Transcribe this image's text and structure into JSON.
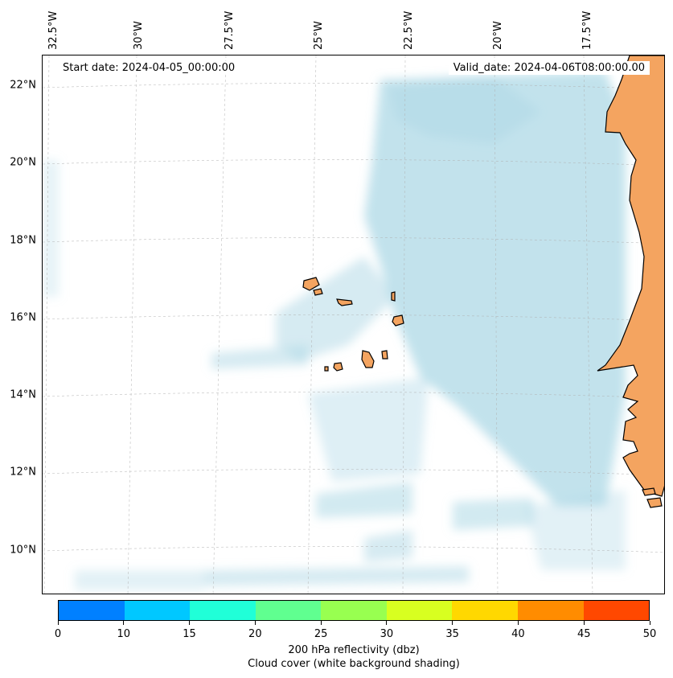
{
  "annotations": {
    "start_date": "Start date: 2024-04-05_00:00:00",
    "valid_date": "Valid_date: 2024-04-06T08:00:00.00"
  },
  "map": {
    "region": "Cape Verde and West African coast",
    "lon_range": [
      -33.0,
      -15.5
    ],
    "lat_range": [
      9.0,
      22.8
    ],
    "lon_labels": [
      "32.5°W",
      "30°W",
      "27.5°W",
      "25°W",
      "22.5°W",
      "20°W",
      "17.5°W"
    ],
    "lon_values": [
      -32.5,
      -30.0,
      -27.5,
      -25.0,
      -22.5,
      -20.0,
      -17.5
    ],
    "lat_labels": [
      "22°N",
      "20°N",
      "18°N",
      "16°N",
      "14°N",
      "12°N",
      "10°N"
    ],
    "lat_values": [
      22,
      20,
      18,
      16,
      14,
      12,
      10
    ],
    "gridlines": true,
    "land_color": "#f4a460",
    "cloud_color": "#add8e6",
    "ocean_color": "#ffffff"
  },
  "colorbar": {
    "title": "200 hPa reflectivity (dbz)",
    "subtitle": "Cloud cover (white background shading)",
    "ticks": [
      "0",
      "10",
      "15",
      "20",
      "25",
      "30",
      "35",
      "40",
      "45",
      "50"
    ],
    "colors": [
      "#0080ff",
      "#00c8ff",
      "#20ffd8",
      "#60ff90",
      "#98ff50",
      "#d8ff20",
      "#ffd800",
      "#ff8c00",
      "#ff4800"
    ]
  }
}
